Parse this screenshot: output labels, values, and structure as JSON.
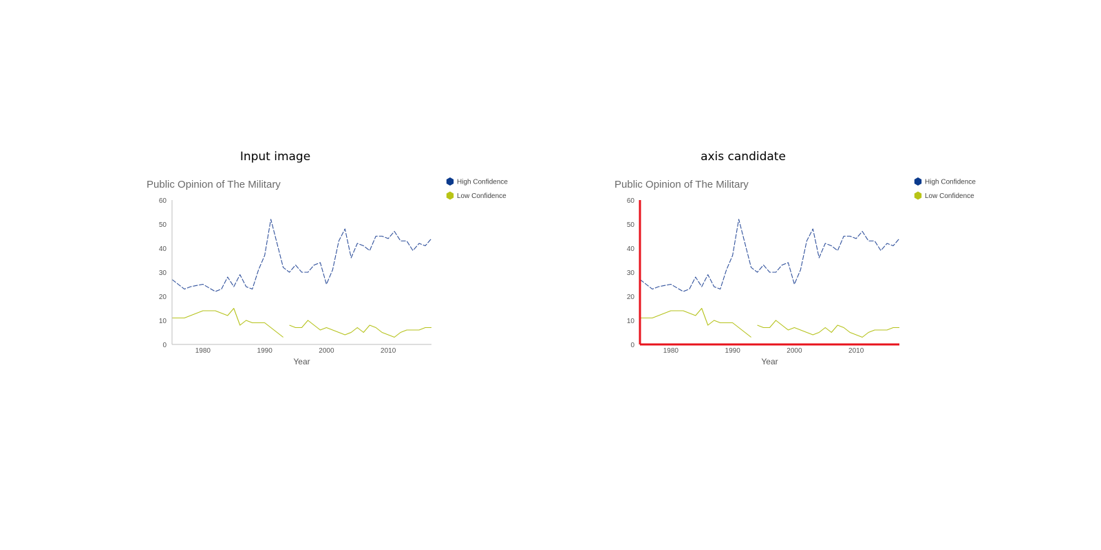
{
  "panels": [
    {
      "heading": "Input image",
      "axis_highlight": false
    },
    {
      "heading": "axis candidate",
      "axis_highlight": true
    }
  ],
  "colors": {
    "high": "#2e4f9b",
    "low": "#b5c21a",
    "axis": "#bdbdbd",
    "highlight": "#e8141e",
    "legend_high": "#0b3a8c",
    "legend_low": "#b8c416"
  },
  "chart_data": {
    "type": "line",
    "title": "Public Opinion of The Military",
    "xlabel": "Year",
    "ylabel": "",
    "xlim": [
      1975,
      2017
    ],
    "ylim": [
      0,
      60
    ],
    "xticks": [
      1980,
      1990,
      2000,
      2010
    ],
    "yticks": [
      0,
      10,
      20,
      30,
      40,
      50,
      60
    ],
    "grid": false,
    "legend_position": "top-right",
    "series": [
      {
        "name": "High Confidence",
        "line_style": "dashed",
        "x": [
          1975,
          1976,
          1977,
          1978,
          1980,
          1982,
          1983,
          1984,
          1985,
          1986,
          1987,
          1988,
          1989,
          1990,
          1991,
          1993,
          1994,
          1995,
          1996,
          1997,
          1998,
          1999,
          2000,
          2001,
          2002,
          2003,
          2004,
          2005,
          2006,
          2007,
          2008,
          2009,
          2010,
          2011,
          2012,
          2013,
          2014,
          2015,
          2016,
          2017
        ],
        "y": [
          27,
          25,
          23,
          24,
          25,
          22,
          23,
          28,
          24,
          29,
          24,
          23,
          31,
          37,
          52,
          32,
          30,
          33,
          30,
          30,
          33,
          34,
          25,
          31,
          43,
          48,
          36,
          42,
          41,
          39,
          45,
          45,
          44,
          47,
          43,
          43,
          39,
          42,
          41,
          44
        ]
      },
      {
        "name": "Low Confidence",
        "line_style": "solid",
        "x": [
          1975,
          1976,
          1977,
          1978,
          1980,
          1982,
          1983,
          1984,
          1985,
          1986,
          1987,
          1988,
          1989,
          1990,
          1991,
          1993,
          null,
          1994,
          1995,
          1996,
          1997,
          1998,
          1999,
          2000,
          2001,
          2002,
          2003,
          2004,
          2005,
          2006,
          2007,
          2008,
          2009,
          2010,
          2011,
          2012,
          2013,
          2014,
          2015,
          2016,
          2017
        ],
        "y": [
          11,
          11,
          11,
          12,
          14,
          14,
          13,
          12,
          15,
          8,
          10,
          9,
          9,
          9,
          7,
          3,
          null,
          8,
          7,
          7,
          10,
          8,
          6,
          7,
          6,
          5,
          4,
          5,
          7,
          5,
          8,
          7,
          5,
          4,
          3,
          5,
          6,
          6,
          6,
          7,
          7
        ]
      }
    ]
  }
}
